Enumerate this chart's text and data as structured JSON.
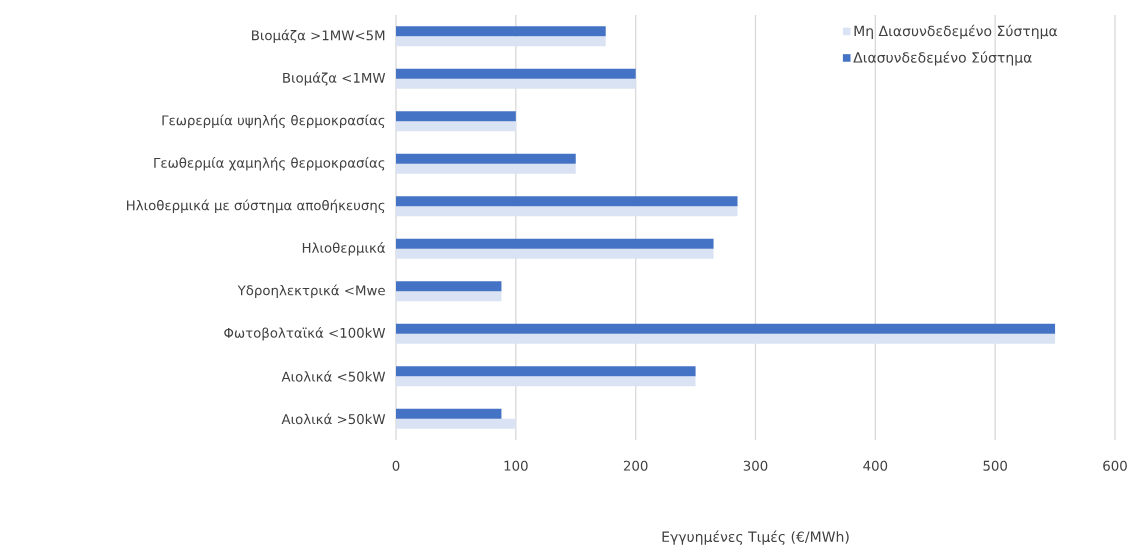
{
  "chart_data": {
    "type": "bar",
    "orientation": "horizontal",
    "categories": [
      "Βιομάζα >1MW<5M",
      "Βιομάζα <1MW",
      "Γεωρερμία υψηλής θερμοκρασίας",
      "Γεωθερμία χαμηλής θερμοκρασίας",
      "Ηλιοθερμικά με σύστημα αποθήκευσης",
      "Ηλιοθερμικά",
      "Υδροηλεκτρικά <Mwe",
      "Φωτοβολταϊκά <100kW",
      "Αιολικά <50kW",
      "Αιολικά >50kW"
    ],
    "series": [
      {
        "name": "Μη Διασυνδεδεμένο Σύστημα",
        "color": "#dae3f3",
        "values": [
          175,
          200,
          100,
          150,
          285,
          265,
          88,
          550,
          250,
          100
        ]
      },
      {
        "name": "Διασυνδεδεμένο Σύστημα",
        "color": "#4472c4",
        "values": [
          175,
          200,
          100,
          150,
          285,
          265,
          88,
          550,
          250,
          88
        ]
      }
    ],
    "xlabel": "Εγγυημένες Τιμές (€/MWh)",
    "xlim": [
      0,
      600
    ],
    "xticks": [
      0,
      100,
      200,
      300,
      400,
      500,
      600
    ],
    "grid": "x",
    "legend": "top right"
  }
}
